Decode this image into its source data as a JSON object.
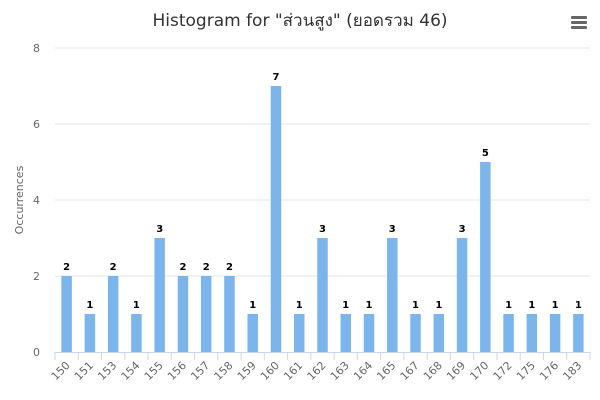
{
  "chart_data": {
    "type": "bar",
    "title": "Histogram for \"ส่วนสูง\" (ยอดรวม 46)",
    "xlabel": "",
    "ylabel": "Occurrences",
    "categories": [
      "150",
      "151",
      "153",
      "154",
      "155",
      "156",
      "157",
      "158",
      "159",
      "160",
      "161",
      "162",
      "163",
      "164",
      "165",
      "167",
      "168",
      "169",
      "170",
      "172",
      "175",
      "176",
      "183"
    ],
    "values": [
      2,
      1,
      2,
      1,
      3,
      2,
      2,
      2,
      1,
      7,
      1,
      3,
      1,
      1,
      3,
      1,
      1,
      3,
      5,
      1,
      1,
      1,
      1
    ],
    "ylim": [
      0,
      8
    ],
    "yticks": [
      0,
      2,
      4,
      6,
      8
    ],
    "grid": true,
    "legend": "none",
    "bar_color": "#7cb5ec",
    "grid_color": "#e6e6e6",
    "axis_color": "#ccd6eb"
  },
  "menu": {
    "icon": "hamburger-menu-icon"
  }
}
